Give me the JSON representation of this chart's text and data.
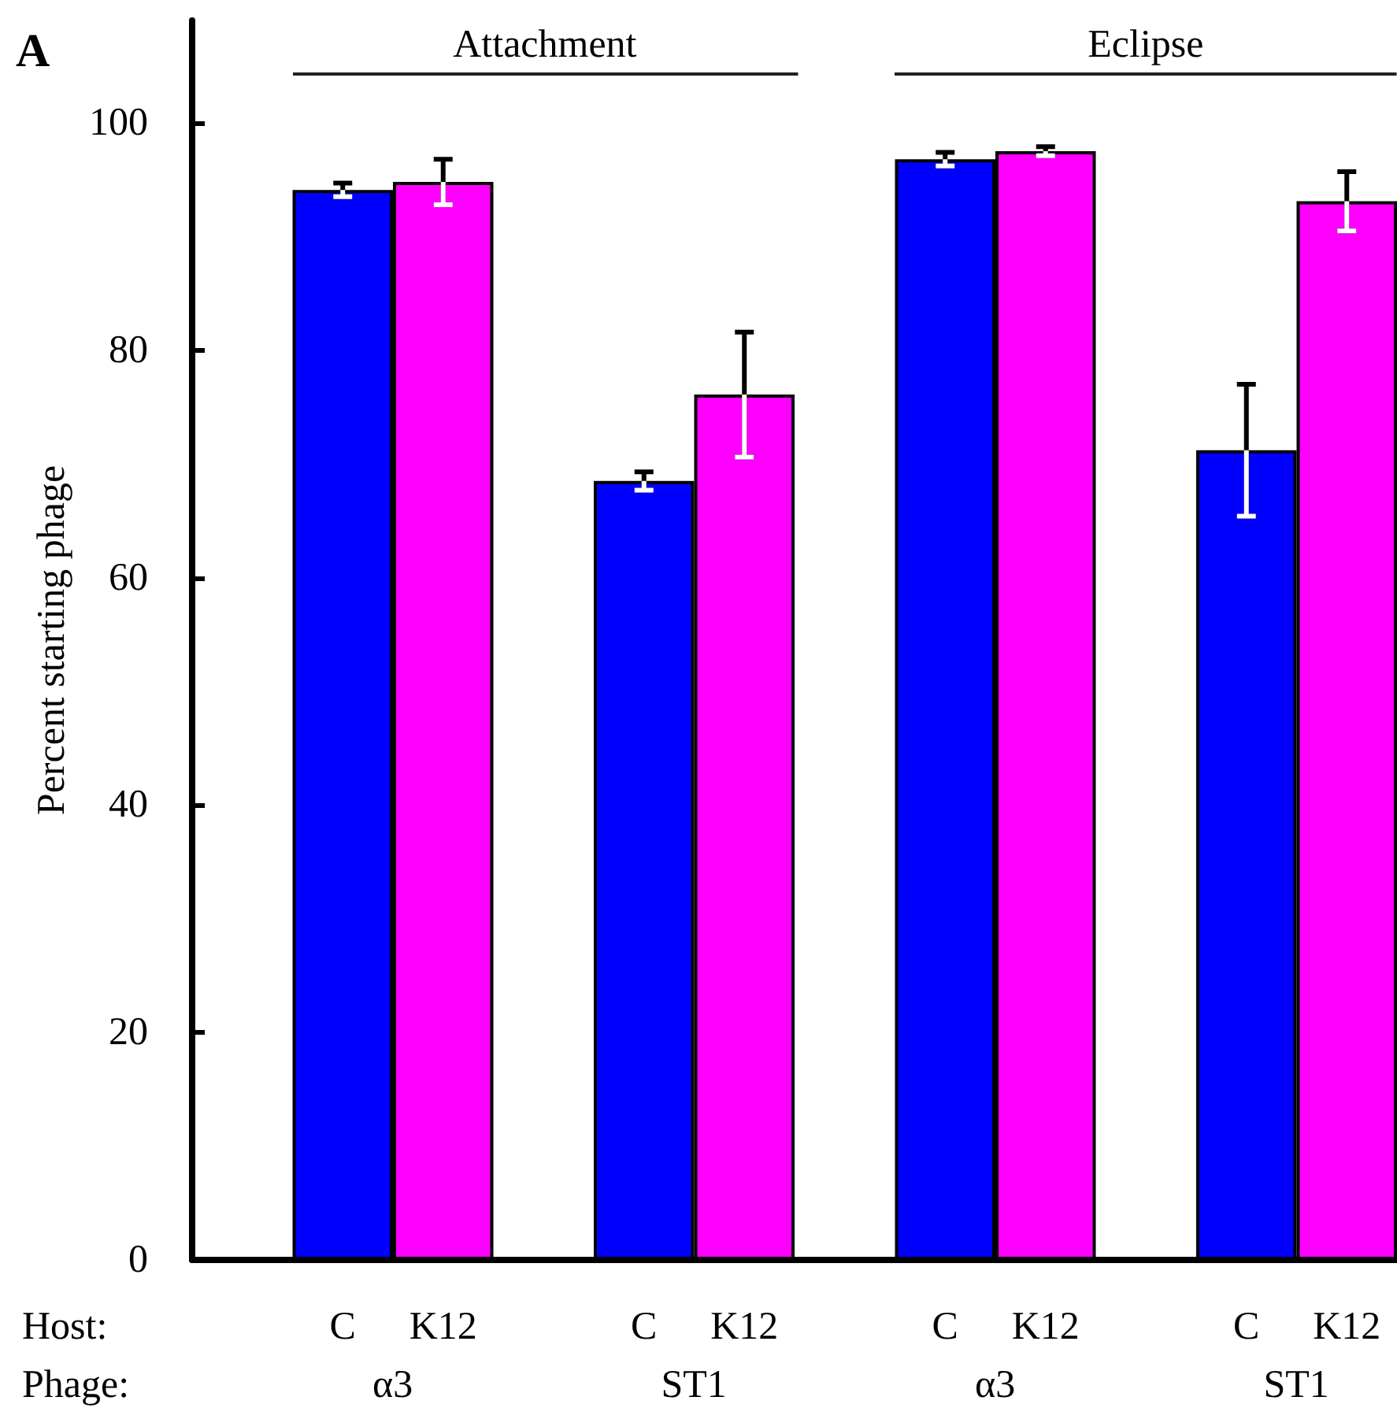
{
  "chart_data": {
    "type": "bar",
    "ylabel": "Percent starting phage",
    "categories": [
      "C",
      "K12",
      "C",
      "K12",
      "C",
      "K12",
      "C",
      "K12"
    ],
    "values": [
      94.1,
      94.8,
      68.5,
      76.1,
      96.8,
      97.5,
      71.2,
      93.1
    ],
    "errors": [
      0.6,
      2.0,
      0.8,
      5.5,
      0.6,
      0.4,
      5.8,
      2.6
    ],
    "colors": [
      "#0000ff",
      "#ff00ff",
      "#0000ff",
      "#ff00ff",
      "#0000ff",
      "#ff00ff",
      "#0000ff",
      "#ff00ff"
    ],
    "ylim": [
      0,
      109
    ],
    "yticks": [
      0,
      20,
      40,
      60,
      80,
      100
    ],
    "grid": false,
    "annotations": [
      "A",
      "Attachment",
      "Eclipse",
      "Host:",
      "Phage:",
      "α3",
      "ST1",
      "α3",
      "ST1"
    ]
  }
}
